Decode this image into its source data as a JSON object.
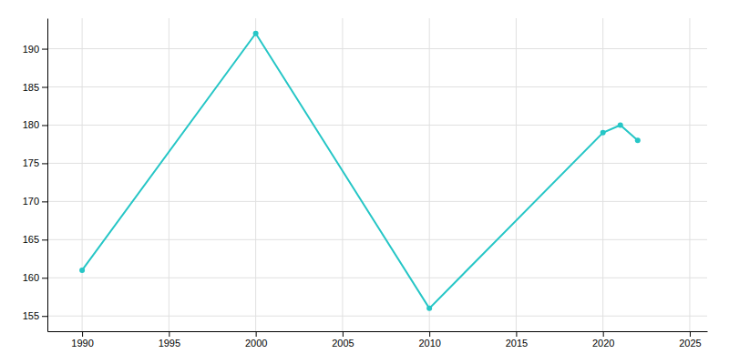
{
  "chart_data": {
    "type": "line",
    "x": [
      1990,
      2000,
      2010,
      2020,
      2021,
      2022
    ],
    "values": [
      161,
      192,
      156,
      179,
      180,
      178
    ],
    "color": "#26C6C6",
    "marker": "circle",
    "xlim": [
      1988,
      2026
    ],
    "ylim": [
      153,
      194
    ],
    "xticks": [
      1990,
      1995,
      2000,
      2005,
      2010,
      2015,
      2020,
      2025
    ],
    "yticks": [
      155,
      160,
      165,
      170,
      175,
      180,
      185,
      190
    ],
    "grid": true
  }
}
